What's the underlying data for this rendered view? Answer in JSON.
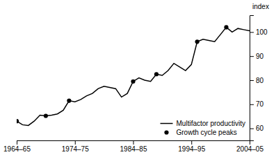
{
  "chart_data": {
    "type": "line",
    "ylabel": "index",
    "xlim": [
      0,
      40
    ],
    "ylim": [
      55,
      107
    ],
    "xticks": [
      {
        "value": 0,
        "label": "1964–65"
      },
      {
        "value": 10,
        "label": "1974–75"
      },
      {
        "value": 20,
        "label": "1984–85"
      },
      {
        "value": 30,
        "label": "1994–95"
      },
      {
        "value": 40,
        "label": "2004–05"
      }
    ],
    "yticks": [
      60,
      70,
      80,
      90,
      100
    ],
    "grid": false,
    "legend": "lower right",
    "series": [
      {
        "name": "Multifactor productivity",
        "type": "line",
        "color": "#000000",
        "x": [
          0,
          1,
          2,
          3,
          4,
          5,
          6,
          7,
          8,
          9,
          10,
          11,
          12,
          13,
          14,
          15,
          16,
          17,
          18,
          19,
          20,
          21,
          22,
          23,
          24,
          25,
          26,
          27,
          28,
          29,
          30,
          31,
          32,
          33,
          34,
          35,
          36,
          37,
          38,
          39,
          40
        ],
        "values": [
          63.0,
          61.5,
          61.2,
          63.0,
          65.5,
          65.2,
          65.5,
          66.0,
          67.5,
          71.5,
          71.0,
          72.0,
          73.5,
          74.5,
          76.5,
          77.5,
          77.0,
          76.5,
          73.0,
          74.5,
          79.5,
          81.0,
          80.0,
          79.5,
          82.5,
          82.0,
          84.0,
          87.0,
          85.5,
          84.0,
          86.5,
          96.0,
          97.0,
          96.5,
          96.0,
          99.0,
          102.0,
          100.0,
          101.5,
          101.0,
          100.5
        ]
      },
      {
        "name": "Growth cycle peaks",
        "type": "scatter",
        "color": "#000000",
        "marker": "circle",
        "x": [
          0,
          5,
          9,
          20,
          24,
          31,
          36
        ],
        "values": [
          63.0,
          65.2,
          71.5,
          79.5,
          82.5,
          96.0,
          102.0
        ]
      }
    ]
  }
}
